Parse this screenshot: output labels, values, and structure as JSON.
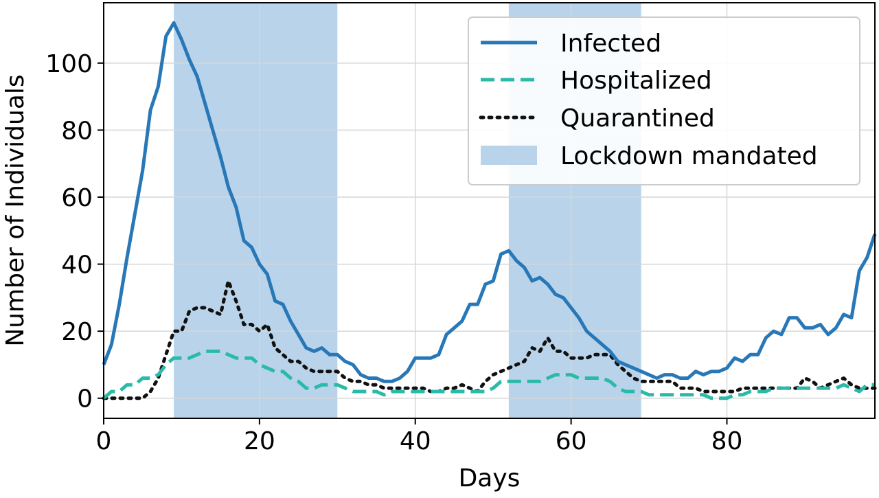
{
  "chart_data": {
    "type": "line",
    "title": "",
    "xlabel": "Days",
    "ylabel": "Number of Individuals",
    "xlim": [
      0,
      99
    ],
    "ylim": [
      -6,
      118
    ],
    "xticks": [
      0,
      20,
      40,
      60,
      80
    ],
    "yticks": [
      0,
      20,
      40,
      60,
      80,
      100
    ],
    "grid": true,
    "legend_position": "top-right",
    "x": [
      0,
      1,
      2,
      3,
      4,
      5,
      6,
      7,
      8,
      9,
      10,
      11,
      12,
      13,
      14,
      15,
      16,
      17,
      18,
      19,
      20,
      21,
      22,
      23,
      24,
      25,
      26,
      27,
      28,
      29,
      30,
      31,
      32,
      33,
      34,
      35,
      36,
      37,
      38,
      39,
      40,
      41,
      42,
      43,
      44,
      45,
      46,
      47,
      48,
      49,
      50,
      51,
      52,
      53,
      54,
      55,
      56,
      57,
      58,
      59,
      60,
      61,
      62,
      63,
      64,
      65,
      66,
      67,
      68,
      69,
      70,
      71,
      72,
      73,
      74,
      75,
      76,
      77,
      78,
      79,
      80,
      81,
      82,
      83,
      84,
      85,
      86,
      87,
      88,
      89,
      90,
      91,
      92,
      93,
      94,
      95,
      96,
      97,
      98,
      99
    ],
    "series": [
      {
        "name": "Infected",
        "color": "#2878b8",
        "style": "solid",
        "values": [
          10,
          16,
          28,
          42,
          55,
          68,
          86,
          93,
          108,
          112,
          107,
          101,
          96,
          88,
          80,
          72,
          63,
          57,
          47,
          45,
          40,
          37,
          29,
          28,
          23,
          19,
          15,
          14,
          15,
          13,
          13,
          11,
          10,
          7,
          6,
          6,
          5,
          5,
          6,
          8,
          12,
          12,
          12,
          13,
          19,
          21,
          23,
          28,
          28,
          34,
          35,
          43,
          44,
          41,
          39,
          35,
          36,
          34,
          31,
          30,
          27,
          24,
          20,
          18,
          16,
          14,
          11,
          10,
          9,
          8,
          7,
          6,
          7,
          7,
          6,
          6,
          8,
          7,
          8,
          8,
          9,
          12,
          11,
          13,
          13,
          18,
          20,
          19,
          24,
          24,
          21,
          21,
          22,
          19,
          21,
          25,
          24,
          38,
          42,
          49
        ]
      },
      {
        "name": "Hospitalized",
        "color": "#2bbaa8",
        "style": "dashed",
        "values": [
          0,
          2,
          2,
          4,
          4,
          6,
          6,
          7,
          10,
          12,
          12,
          12,
          13,
          14,
          14,
          14,
          13,
          12,
          12,
          12,
          10,
          9,
          8,
          8,
          6,
          5,
          3,
          3,
          4,
          4,
          4,
          3,
          2,
          2,
          2,
          2,
          1,
          2,
          2,
          2,
          2,
          2,
          2,
          2,
          2,
          2,
          2,
          2,
          2,
          2,
          3,
          5,
          5,
          5,
          5,
          5,
          5,
          6,
          7,
          7,
          7,
          6,
          6,
          6,
          6,
          5,
          3,
          2,
          2,
          2,
          1,
          1,
          1,
          1,
          1,
          1,
          1,
          1,
          0,
          0,
          0,
          1,
          1,
          2,
          2,
          2,
          3,
          3,
          3,
          3,
          3,
          3,
          3,
          3,
          3,
          4,
          3,
          2,
          4,
          4
        ]
      },
      {
        "name": "Quarantined",
        "color": "#111111",
        "style": "dotted",
        "values": [
          0,
          0,
          0,
          0,
          0,
          0,
          2,
          6,
          13,
          20,
          20,
          26,
          27,
          27,
          26,
          25,
          35,
          29,
          22,
          22,
          20,
          22,
          15,
          13,
          11,
          11,
          9,
          8,
          8,
          8,
          8,
          6,
          5,
          5,
          4,
          4,
          3,
          3,
          3,
          3,
          3,
          3,
          2,
          2,
          3,
          3,
          4,
          3,
          2,
          5,
          7,
          8,
          9,
          10,
          11,
          15,
          14,
          18,
          14,
          14,
          12,
          12,
          12,
          13,
          13,
          13,
          10,
          8,
          6,
          5,
          5,
          5,
          5,
          5,
          3,
          3,
          3,
          2,
          2,
          2,
          2,
          2,
          3,
          3,
          3,
          3,
          3,
          3,
          3,
          3,
          6,
          5,
          3,
          4,
          5,
          6,
          4,
          3,
          3,
          3
        ]
      }
    ],
    "shaded_regions": [
      {
        "name": "Lockdown mandated",
        "color": "#b9d4ea",
        "ranges": [
          [
            9,
            30
          ],
          [
            52,
            69
          ]
        ]
      }
    ]
  }
}
